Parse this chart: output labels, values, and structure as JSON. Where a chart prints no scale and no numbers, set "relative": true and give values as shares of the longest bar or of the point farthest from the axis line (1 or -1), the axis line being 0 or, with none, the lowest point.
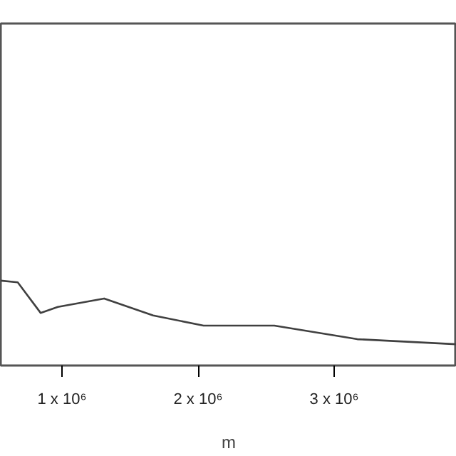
{
  "chart_data": {
    "type": "line",
    "relative": true,
    "xlabel": "m",
    "x": [
      550000,
      675000,
      843000,
      970000,
      1310000,
      1670000,
      2040000,
      2560000,
      3170000,
      3900000
    ],
    "series": [
      {
        "color": "#404040",
        "values": [
          1,
          0.98,
          0.62,
          0.69,
          0.79,
          0.59,
          0.47,
          0.47,
          0.31,
          0.25
        ]
      }
    ],
    "xlim": [
      550000,
      3900000
    ],
    "xticks": [
      {
        "value": 1000000,
        "label": "1 x 10⁶"
      },
      {
        "value": 2000000,
        "label": "2 x 10⁶"
      },
      {
        "value": 3000000,
        "label": "3 x 10⁶"
      }
    ],
    "line_style": "solid"
  }
}
